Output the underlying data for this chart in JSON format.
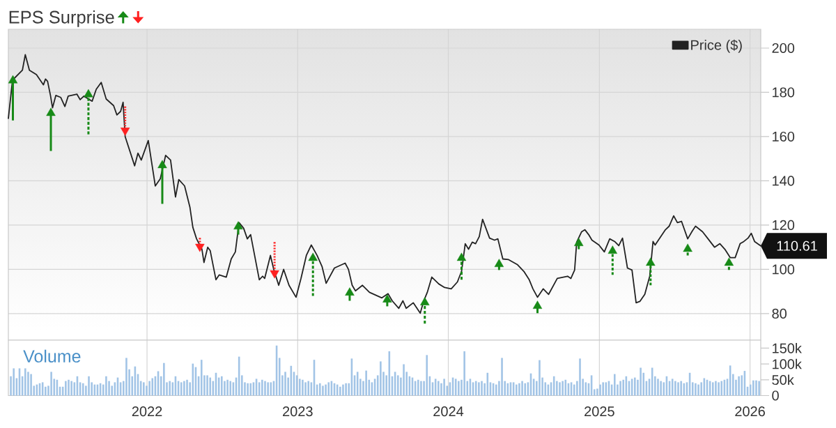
{
  "chart_data": [
    {
      "type": "line",
      "title": "EPS Surprise",
      "xlim": [
        "2021-01-30",
        "2026-01-27"
      ],
      "ylim": [
        68,
        208.5
      ],
      "xticks": [
        "2022",
        "2023",
        "2024",
        "2025",
        "2026"
      ],
      "yticks": [
        80,
        100,
        120,
        140,
        160,
        180,
        200
      ],
      "tick_labels": "y",
      "grid": true,
      "legend": "top right",
      "annotations": [
        {
          "text": "110.61",
          "x": "2026-01-27",
          "y": 110.61
        }
      ],
      "series": [
        {
          "name": "Price ($)",
          "color": "#222222",
          "x": [
            "2021-01-30",
            "2021-02-09",
            "2021-03-05",
            "2021-03-12",
            "2021-03-22",
            "2021-04-08",
            "2021-04-25",
            "2021-04-30",
            "2021-05-05",
            "2021-05-12",
            "2021-05-17",
            "2021-05-25",
            "2021-06-06",
            "2021-06-16",
            "2021-06-24",
            "2021-07-15",
            "2021-07-23",
            "2021-08-01",
            "2021-08-21",
            "2021-08-31",
            "2021-09-12",
            "2021-09-24",
            "2021-10-12",
            "2021-10-20",
            "2021-10-29",
            "2021-11-04",
            "2021-11-09",
            "2021-12-02",
            "2021-12-10",
            "2021-12-18",
            "2022-01-04",
            "2022-01-21",
            "2022-02-02",
            "2022-02-15",
            "2022-02-27",
            "2022-03-11",
            "2022-03-19",
            "2022-04-02",
            "2022-04-15",
            "2022-04-22",
            "2022-05-01",
            "2022-05-14",
            "2022-05-19",
            "2022-05-28",
            "2022-06-03",
            "2022-06-17",
            "2022-06-25",
            "2022-07-12",
            "2022-07-24",
            "2022-08-03",
            "2022-08-12",
            "2022-08-23",
            "2022-09-01",
            "2022-09-09",
            "2022-09-30",
            "2022-10-08",
            "2022-10-13",
            "2022-10-27",
            "2022-11-04",
            "2022-11-16",
            "2022-11-28",
            "2022-12-11",
            "2022-12-28",
            "2023-01-09",
            "2023-01-22",
            "2023-02-03",
            "2023-02-17",
            "2023-03-01",
            "2023-03-11",
            "2023-03-31",
            "2023-04-26",
            "2023-05-04",
            "2023-05-13",
            "2023-05-21",
            "2023-06-07",
            "2023-06-24",
            "2023-07-24",
            "2023-08-08",
            "2023-08-18",
            "2023-09-03",
            "2023-09-13",
            "2023-09-21",
            "2023-10-08",
            "2023-10-25",
            "2023-11-02",
            "2023-11-11",
            "2023-11-22",
            "2023-12-09",
            "2023-12-23",
            "2024-01-08",
            "2024-01-23",
            "2024-02-02",
            "2024-02-11",
            "2024-02-19",
            "2024-02-28",
            "2024-03-07",
            "2024-03-16",
            "2024-03-24",
            "2024-04-10",
            "2024-04-22",
            "2024-04-30",
            "2024-05-12",
            "2024-05-26",
            "2024-06-16",
            "2024-07-02",
            "2024-07-15",
            "2024-07-24",
            "2024-08-04",
            "2024-08-18",
            "2024-08-31",
            "2024-09-21",
            "2024-10-16",
            "2024-10-24",
            "2024-11-02",
            "2024-11-07",
            "2024-11-19",
            "2024-11-27",
            "2024-12-06",
            "2024-12-14",
            "2024-12-31",
            "2025-01-13",
            "2025-01-26",
            "2025-02-07",
            "2025-02-17",
            "2025-02-26",
            "2025-03-10",
            "2025-03-21",
            "2025-03-31",
            "2025-04-09",
            "2025-04-21",
            "2025-05-03",
            "2025-05-11",
            "2025-05-16",
            "2025-06-10",
            "2025-06-19",
            "2025-06-30",
            "2025-07-09",
            "2025-07-19",
            "2025-08-03",
            "2025-08-14",
            "2025-08-22",
            "2025-09-08",
            "2025-09-20",
            "2025-10-07",
            "2025-10-20",
            "2025-11-01",
            "2025-11-14",
            "2025-11-26",
            "2025-12-08",
            "2025-12-17",
            "2025-12-27",
            "2026-01-04",
            "2026-01-12",
            "2026-01-27"
          ],
          "values": [
            168.2,
            185.5,
            190,
            197,
            190,
            188,
            183.4,
            186,
            185,
            178.6,
            173,
            178.6,
            177.7,
            173.6,
            178.3,
            179.2,
            176.7,
            178.3,
            176,
            181.4,
            184.5,
            177,
            174,
            169.8,
            171.4,
            175.5,
            160,
            146.8,
            152.5,
            149.4,
            158.2,
            137.7,
            140.9,
            151.5,
            149.4,
            132.7,
            140.6,
            137.7,
            128,
            119,
            113.8,
            109.1,
            103.1,
            110,
            108.5,
            95.3,
            97.5,
            96.5,
            104.7,
            107.9,
            121.1,
            118.6,
            113.8,
            115.7,
            95.3,
            96.9,
            95.9,
            106.3,
            100,
            92.8,
            100,
            92.8,
            87.4,
            95.9,
            106.3,
            111,
            106.3,
            101.3,
            93.7,
            100.6,
            102.8,
            100,
            92.8,
            90.3,
            92.8,
            89.6,
            87.1,
            89,
            85.8,
            82.4,
            85.8,
            82.4,
            84.9,
            80.2,
            85.5,
            89.6,
            96.5,
            93.4,
            91.8,
            91.2,
            94.3,
            99.1,
            111.6,
            109.1,
            112.3,
            111.6,
            114.8,
            122.6,
            114.1,
            113.2,
            113.8,
            104.7,
            104.4,
            102.2,
            99.1,
            95.3,
            91.2,
            87.4,
            91.2,
            88.7,
            95.9,
            96.9,
            95.9,
            99.7,
            112.3,
            117,
            117.9,
            115.7,
            113.2,
            111,
            107.9,
            113.8,
            112.6,
            110.7,
            114.1,
            100.6,
            99.7,
            84.9,
            85.5,
            88.7,
            96.9,
            112.6,
            111,
            117.9,
            119.5,
            124.2,
            121.1,
            121.7,
            113.8,
            117.3,
            119.5,
            117,
            114.1,
            110,
            111.6,
            109.1,
            105.3,
            105.3,
            111.6,
            112.6,
            114.1,
            116.3,
            112.6,
            110.6
          ]
        },
        {
          "type": "scatter",
          "color": "#178a17",
          "marker": "triangle",
          "line_style": "solid",
          "x": [
            "2021-02-10",
            "2021-05-13",
            "2022-02-07",
            "2022-08-10",
            "2023-05-07",
            "2023-08-06",
            "2024-05-03",
            "2024-08-04",
            "2024-11-12"
          ],
          "values": [
            185.9,
            171.2,
            147.6,
            119.9,
            90,
            86.9,
            102.9,
            84,
            112.4
          ],
          "errors": [
            [
              167.3,
              185.9
            ],
            [
              153.5,
              171.2
            ],
            [
              129.6,
              147.6
            ],
            [
              115.7,
              119.9
            ],
            [
              85.8,
              90
            ],
            [
              83.3,
              86.9
            ],
            [
              99.7,
              102.9
            ],
            [
              80.2,
              84
            ],
            [
              109.1,
              112.4
            ]
          ]
        },
        {
          "type": "scatter",
          "color": "#178a17",
          "marker": "triangle",
          "line_style": "dashed",
          "x": [
            "2021-08-12",
            "2023-02-07",
            "2023-11-05",
            "2024-02-02",
            "2025-02-02",
            "2025-05-05",
            "2025-08-03",
            "2025-11-11"
          ],
          "values": [
            179.6,
            105.7,
            85.6,
            105.7,
            108.9,
            103.5,
            109.8,
            103.5
          ],
          "errors": [
            [
              161,
              179.6
            ],
            [
              88,
              105.7
            ],
            [
              75.5,
              85.6
            ],
            [
              95.3,
              105.7
            ],
            [
              97.5,
              108.9
            ],
            [
              92.8,
              103.5
            ],
            [
              106.3,
              109.8
            ],
            [
              99.7,
              103.5
            ]
          ]
        },
        {
          "type": "scatter",
          "color": "#ff2020",
          "marker": "triangle",
          "line_style": "dotted",
          "x": [
            "2021-11-09",
            "2022-05-09",
            "2022-11-06"
          ],
          "values": [
            162.2,
            109.7,
            97.7
          ],
          "errors": [
            [
              162.2,
              173.6
            ],
            [
              109.7,
              114.2
            ],
            [
              97.7,
              112.3
            ]
          ]
        }
      ]
    },
    {
      "type": "bar",
      "xlim": [
        "2021-01-30",
        "2026-01-27"
      ],
      "ylim": [
        0,
        175000
      ],
      "xticks": [
        "2022",
        "2023",
        "2024",
        "2025",
        "2026"
      ],
      "yticks": [
        0,
        {
          "value": 50000,
          "label": "50k"
        },
        {
          "value": 100000,
          "label": "100k"
        },
        {
          "value": 150000,
          "label": "150k"
        }
      ],
      "grid": "x",
      "x": [
        "2021-02-05",
        "2021-02-12",
        "2021-02-19",
        "2021-02-26",
        "2021-03-05",
        "2021-03-12",
        "2021-03-19",
        "2021-03-26",
        "2021-04-02",
        "2021-04-09",
        "2021-04-16",
        "2021-04-23",
        "2021-04-30",
        "2021-05-07",
        "2021-05-14",
        "2021-05-21",
        "2021-05-28",
        "2021-06-04",
        "2021-06-11",
        "2021-06-18",
        "2021-06-25",
        "2021-07-02",
        "2021-07-09",
        "2021-07-16",
        "2021-07-23",
        "2021-07-30",
        "2021-08-06",
        "2021-08-13",
        "2021-08-20",
        "2021-08-27",
        "2021-09-03",
        "2021-09-10",
        "2021-09-17",
        "2021-09-24",
        "2021-10-01",
        "2021-10-08",
        "2021-10-15",
        "2021-10-22",
        "2021-10-29",
        "2021-11-05",
        "2021-11-12",
        "2021-11-19",
        "2021-11-26",
        "2021-12-03",
        "2021-12-10",
        "2021-12-17",
        "2021-12-24",
        "2021-12-31",
        "2022-01-07",
        "2022-01-14",
        "2022-01-21",
        "2022-01-28",
        "2022-02-04",
        "2022-02-11",
        "2022-02-18",
        "2022-02-25",
        "2022-03-04",
        "2022-03-11",
        "2022-03-18",
        "2022-03-25",
        "2022-04-01",
        "2022-04-08",
        "2022-04-15",
        "2022-04-22",
        "2022-04-29",
        "2022-05-06",
        "2022-05-13",
        "2022-05-20",
        "2022-05-27",
        "2022-06-03",
        "2022-06-10",
        "2022-06-17",
        "2022-06-24",
        "2022-07-01",
        "2022-07-08",
        "2022-07-15",
        "2022-07-22",
        "2022-07-29",
        "2022-08-05",
        "2022-08-12",
        "2022-08-19",
        "2022-08-26",
        "2022-09-02",
        "2022-09-09",
        "2022-09-16",
        "2022-09-23",
        "2022-09-30",
        "2022-10-07",
        "2022-10-14",
        "2022-10-21",
        "2022-10-28",
        "2022-11-04",
        "2022-11-11",
        "2022-11-18",
        "2022-11-25",
        "2022-12-02",
        "2022-12-09",
        "2022-12-16",
        "2022-12-23",
        "2022-12-30",
        "2023-01-06",
        "2023-01-13",
        "2023-01-20",
        "2023-01-27",
        "2023-02-03",
        "2023-02-10",
        "2023-02-17",
        "2023-02-24",
        "2023-03-03",
        "2023-03-10",
        "2023-03-17",
        "2023-03-24",
        "2023-03-31",
        "2023-04-07",
        "2023-04-14",
        "2023-04-21",
        "2023-04-28",
        "2023-05-05",
        "2023-05-12",
        "2023-05-19",
        "2023-05-26",
        "2023-06-02",
        "2023-06-09",
        "2023-06-16",
        "2023-06-23",
        "2023-06-30",
        "2023-07-07",
        "2023-07-14",
        "2023-07-21",
        "2023-07-28",
        "2023-08-04",
        "2023-08-11",
        "2023-08-18",
        "2023-08-25",
        "2023-09-01",
        "2023-09-08",
        "2023-09-15",
        "2023-09-22",
        "2023-09-29",
        "2023-10-06",
        "2023-10-13",
        "2023-10-20",
        "2023-10-27",
        "2023-11-03",
        "2023-11-10",
        "2023-11-17",
        "2023-11-24",
        "2023-12-01",
        "2023-12-08",
        "2023-12-15",
        "2023-12-22",
        "2023-12-29",
        "2024-01-05",
        "2024-01-12",
        "2024-01-19",
        "2024-01-26",
        "2024-02-02",
        "2024-02-09",
        "2024-02-16",
        "2024-02-23",
        "2024-03-01",
        "2024-03-08",
        "2024-03-15",
        "2024-03-22",
        "2024-03-29",
        "2024-04-05",
        "2024-04-12",
        "2024-04-19",
        "2024-04-26",
        "2024-05-03",
        "2024-05-10",
        "2024-05-17",
        "2024-05-24",
        "2024-05-31",
        "2024-06-07",
        "2024-06-14",
        "2024-06-21",
        "2024-06-28",
        "2024-07-05",
        "2024-07-12",
        "2024-07-19",
        "2024-07-26",
        "2024-08-02",
        "2024-08-09",
        "2024-08-16",
        "2024-08-23",
        "2024-08-30",
        "2024-09-06",
        "2024-09-13",
        "2024-09-20",
        "2024-09-27",
        "2024-10-04",
        "2024-10-11",
        "2024-10-18",
        "2024-10-25",
        "2024-11-01",
        "2024-11-08",
        "2024-11-15",
        "2024-11-22",
        "2024-11-29",
        "2024-12-06",
        "2024-12-13",
        "2024-12-20",
        "2024-12-27",
        "2025-01-03",
        "2025-01-10",
        "2025-01-17",
        "2025-01-24",
        "2025-01-31",
        "2025-02-07",
        "2025-02-14",
        "2025-02-21",
        "2025-02-28",
        "2025-03-07",
        "2025-03-14",
        "2025-03-21",
        "2025-03-28",
        "2025-04-04",
        "2025-04-11",
        "2025-04-18",
        "2025-04-25",
        "2025-05-02",
        "2025-05-09",
        "2025-05-16",
        "2025-05-23",
        "2025-05-30",
        "2025-06-06",
        "2025-06-13",
        "2025-06-20",
        "2025-06-27",
        "2025-07-04",
        "2025-07-11",
        "2025-07-18",
        "2025-07-25",
        "2025-08-01",
        "2025-08-08",
        "2025-08-15",
        "2025-08-22",
        "2025-08-29",
        "2025-09-05",
        "2025-09-12",
        "2025-09-19",
        "2025-09-26",
        "2025-10-03",
        "2025-10-10",
        "2025-10-17",
        "2025-10-24",
        "2025-10-31",
        "2025-11-07",
        "2025-11-14",
        "2025-11-21",
        "2025-11-28",
        "2025-12-05",
        "2025-12-12",
        "2025-12-19",
        "2025-12-26",
        "2026-01-02",
        "2026-01-09",
        "2026-01-16",
        "2026-01-23"
      ],
      "series": [
        {
          "name": "Volume",
          "color": "#a2c4e6",
          "values": [
            61000,
            86000,
            55000,
            86000,
            61000,
            86000,
            75000,
            68000,
            31000,
            35000,
            39000,
            42000,
            28000,
            31000,
            75000,
            53000,
            50000,
            28000,
            28000,
            46000,
            50000,
            46000,
            42000,
            61000,
            42000,
            39000,
            31000,
            61000,
            42000,
            35000,
            35000,
            39000,
            35000,
            61000,
            46000,
            31000,
            42000,
            57000,
            42000,
            46000,
            119000,
            83000,
            61000,
            92000,
            68000,
            46000,
            42000,
            31000,
            46000,
            55000,
            61000,
            77000,
            61000,
            103000,
            42000,
            46000,
            42000,
            61000,
            46000,
            42000,
            46000,
            50000,
            42000,
            101000,
            90000,
            61000,
            113000,
            64000,
            64000,
            57000,
            46000,
            72000,
            57000,
            61000,
            46000,
            50000,
            46000,
            42000,
            57000,
            123000,
            64000,
            42000,
            39000,
            39000,
            42000,
            53000,
            42000,
            50000,
            46000,
            42000,
            42000,
            46000,
            158000,
            119000,
            64000,
            75000,
            57000,
            94000,
            75000,
            64000,
            53000,
            50000,
            42000,
            46000,
            42000,
            113000,
            35000,
            39000,
            31000,
            35000,
            42000,
            46000,
            39000,
            35000,
            28000,
            35000,
            39000,
            39000,
            117000,
            64000,
            75000,
            53000,
            46000,
            79000,
            50000,
            42000,
            53000,
            64000,
            108000,
            75000,
            64000,
            140000,
            61000,
            75000,
            64000,
            57000,
            99000,
            75000,
            61000,
            57000,
            46000,
            50000,
            46000,
            46000,
            128000,
            61000,
            42000,
            53000,
            46000,
            39000,
            53000,
            31000,
            42000,
            57000,
            53000,
            46000,
            50000,
            140000,
            46000,
            53000,
            42000,
            46000,
            42000,
            46000,
            39000,
            72000,
            42000,
            39000,
            35000,
            46000,
            119000,
            46000,
            39000,
            42000,
            42000,
            35000,
            39000,
            46000,
            39000,
            42000,
            70000,
            53000,
            46000,
            112000,
            57000,
            42000,
            35000,
            42000,
            61000,
            46000,
            42000,
            46000,
            50000,
            39000,
            42000,
            35000,
            46000,
            117000,
            53000,
            42000,
            39000,
            64000,
            20000,
            22000,
            35000,
            42000,
            42000,
            46000,
            35000,
            68000,
            35000,
            46000,
            50000,
            61000,
            46000,
            53000,
            57000,
            50000,
            88000,
            72000,
            46000,
            53000,
            88000,
            61000,
            53000,
            46000,
            42000,
            61000,
            46000,
            53000,
            46000,
            42000,
            46000,
            39000,
            42000,
            72000,
            42000,
            39000,
            35000,
            42000,
            55000,
            50000,
            46000,
            42000,
            46000,
            42000,
            46000,
            50000,
            53000,
            95000,
            68000,
            50000,
            61000,
            64000,
            78000,
            28000,
            35000,
            48000,
            48000,
            46000
          ]
        }
      ]
    }
  ]
}
